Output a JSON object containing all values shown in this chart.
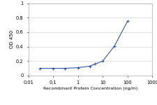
{
  "x": [
    0.03,
    0.1,
    0.3,
    1,
    3,
    5,
    10,
    30,
    100
  ],
  "y": [
    0.1,
    0.1,
    0.1,
    0.11,
    0.13,
    0.16,
    0.2,
    0.41,
    0.75
  ],
  "color": "#3355aa",
  "marker": "+",
  "markersize": 3.5,
  "linewidth": 0.8,
  "markeredgewidth": 0.8,
  "xlabel": "Recombinant Protein Concentration (ng/m)",
  "ylabel": "OD 450",
  "xlim": [
    0.01,
    1000
  ],
  "ylim": [
    0,
    1
  ],
  "yticks": [
    0,
    0.2,
    0.4,
    0.6,
    0.8,
    1
  ],
  "xticks": [
    0.01,
    0.1,
    1,
    10,
    100,
    1000
  ],
  "xtick_labels": [
    "0.01",
    "0.1",
    "1",
    "10",
    "100",
    "1000"
  ],
  "xlabel_fontsize": 4.5,
  "ylabel_fontsize": 5,
  "tick_fontsize": 4.8,
  "grid_color": "#cccccc",
  "grid_linewidth": 0.4,
  "background_color": "#ffffff",
  "spine_color": "#aaaaaa",
  "spine_linewidth": 0.5
}
